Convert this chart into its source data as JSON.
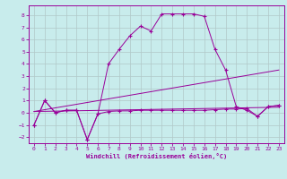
{
  "xlabel": "Windchill (Refroidissement éolien,°C)",
  "xlim": [
    -0.5,
    23.5
  ],
  "ylim": [
    -2.5,
    8.8
  ],
  "xticks": [
    0,
    1,
    2,
    3,
    4,
    5,
    6,
    7,
    8,
    9,
    10,
    11,
    12,
    13,
    14,
    15,
    16,
    17,
    18,
    19,
    20,
    21,
    22,
    23
  ],
  "yticks": [
    -2,
    -1,
    0,
    1,
    2,
    3,
    4,
    5,
    6,
    7,
    8
  ],
  "bg_color": "#c8ecec",
  "grid_color": "#b0c8c8",
  "line_color": "#990099",
  "curve1_x": [
    0,
    1,
    2,
    3,
    4,
    5,
    6,
    7,
    8,
    9,
    10,
    11,
    12,
    13,
    14,
    15,
    16,
    17,
    18,
    19,
    20,
    21,
    22,
    23
  ],
  "curve1_y": [
    -1.0,
    1.0,
    0.0,
    0.2,
    0.2,
    -2.2,
    -0.1,
    4.0,
    5.2,
    6.3,
    7.1,
    6.7,
    8.1,
    8.1,
    8.1,
    8.1,
    7.9,
    5.2,
    3.5,
    0.5,
    0.2,
    -0.3,
    0.5,
    0.6
  ],
  "curve2_x": [
    0,
    1,
    2,
    3,
    4,
    5,
    6,
    7,
    8,
    9,
    10,
    11,
    12,
    13,
    14,
    15,
    16,
    17,
    18,
    19,
    20,
    21,
    22,
    23
  ],
  "curve2_y": [
    -1.0,
    1.0,
    0.0,
    0.2,
    0.2,
    -2.2,
    -0.1,
    0.1,
    0.15,
    0.15,
    0.2,
    0.2,
    0.2,
    0.2,
    0.2,
    0.2,
    0.2,
    0.25,
    0.3,
    0.3,
    0.35,
    -0.3,
    0.5,
    0.6
  ],
  "trend1_x": [
    0,
    23
  ],
  "trend1_y": [
    0.1,
    3.5
  ],
  "trend2_x": [
    0,
    23
  ],
  "trend2_y": [
    0.1,
    0.45
  ]
}
